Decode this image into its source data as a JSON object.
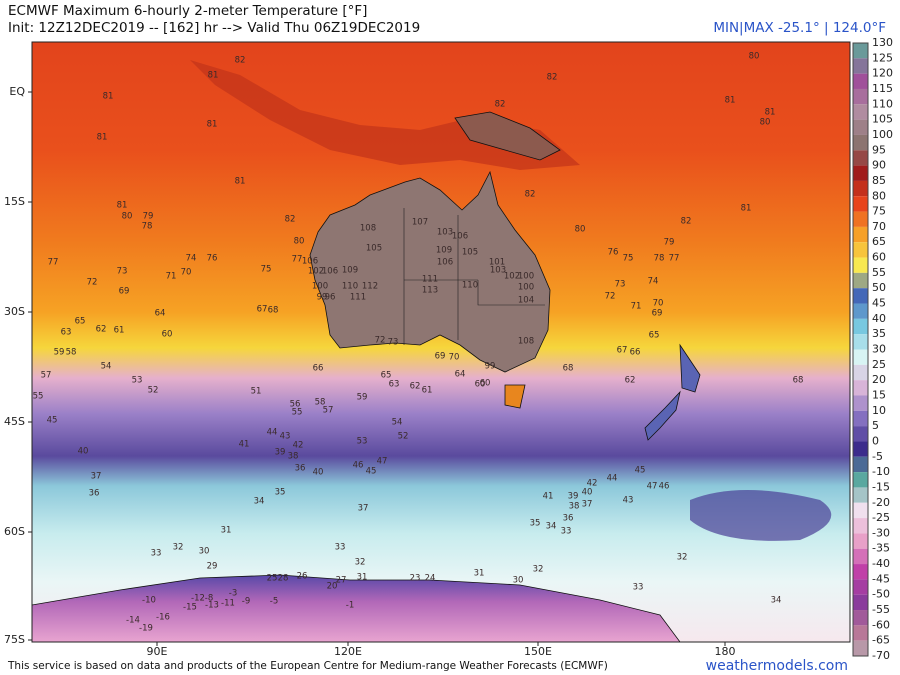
{
  "header": {
    "title": "ECMWF Maximum 6-hourly 2-meter Temperature [°F]",
    "subtitle": "Init: 12Z12DEC2019 -- [162] hr --> Valid Thu 06Z19DEC2019",
    "minmax": "MIN|MAX -25.1° | 124.0°F"
  },
  "map": {
    "lat_labels": [
      "EQ",
      "15S",
      "30S",
      "45S",
      "60S",
      "75S"
    ],
    "lon_labels": [
      "90E",
      "120E",
      "150E",
      "180"
    ],
    "station_values": [
      81,
      81,
      82,
      81,
      81,
      81,
      81,
      80,
      79,
      78,
      77,
      74,
      76,
      71,
      70,
      73,
      72,
      69,
      64,
      60,
      63,
      65,
      62,
      61,
      67,
      68,
      75,
      80,
      82,
      82,
      82,
      82,
      80,
      76,
      75,
      78,
      77,
      79,
      74,
      73,
      72,
      71,
      70,
      69,
      65,
      67,
      66,
      68,
      62,
      59,
      58,
      54,
      57,
      53,
      52,
      55,
      45,
      66,
      65,
      63,
      62,
      61,
      64,
      60,
      59,
      58,
      57,
      56,
      55,
      54,
      52,
      53,
      51,
      41,
      44,
      43,
      42,
      39,
      38,
      36,
      40,
      46,
      45,
      47,
      40,
      37,
      36,
      35,
      34,
      37,
      41,
      39,
      40,
      42,
      38,
      37,
      36,
      35,
      34,
      33,
      44,
      43,
      45,
      47,
      46,
      31,
      33,
      32,
      30,
      29,
      33,
      32,
      31,
      31,
      30,
      32,
      32,
      33,
      34,
      68,
      80,
      81,
      82,
      81,
      81,
      80,
      107,
      103,
      108,
      105,
      109,
      106,
      105,
      106,
      101,
      103,
      102,
      100,
      100,
      104,
      109,
      110,
      112,
      111,
      100,
      99,
      96,
      102,
      106,
      106,
      77,
      111,
      113,
      110,
      108,
      99,
      72,
      73,
      69,
      70,
      60,
      -10,
      -14,
      -19,
      -16,
      -15,
      -13,
      -11,
      -9,
      -5,
      -12,
      -8,
      -3,
      25,
      28,
      26,
      27,
      20,
      23,
      24,
      -1
    ]
  },
  "colorbar": {
    "ticks": [
      130,
      125,
      120,
      115,
      110,
      105,
      100,
      95,
      90,
      85,
      80,
      75,
      70,
      65,
      60,
      55,
      50,
      45,
      40,
      35,
      30,
      25,
      20,
      15,
      10,
      5,
      0,
      -5,
      -10,
      -15,
      -20,
      -25,
      -30,
      -35,
      -40,
      -45,
      -50,
      -55,
      -60,
      -65,
      -70
    ]
  },
  "footer": {
    "credit": "This service is based on data and products of the European Centre for Medium-range Weather Forecasts (ECMWF)",
    "site": "weathermodels.com"
  }
}
